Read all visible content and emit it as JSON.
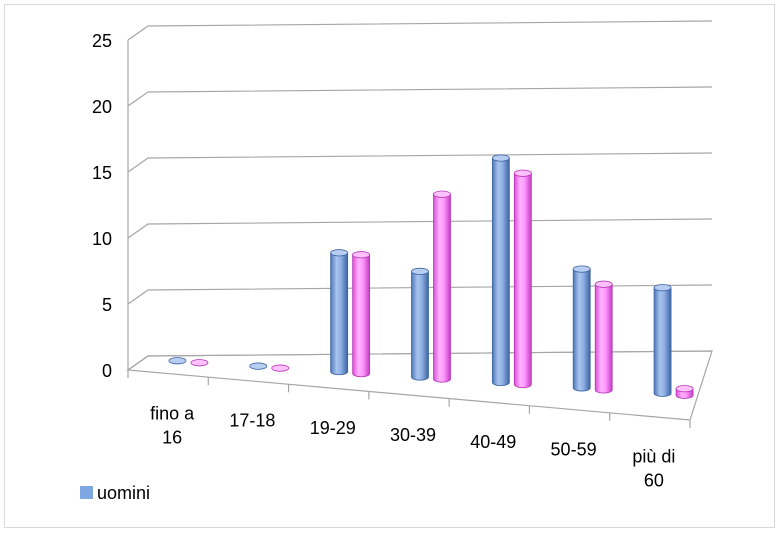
{
  "chart_data": {
    "type": "bar",
    "categories": [
      [
        "fino a",
        "16"
      ],
      [
        "17-18"
      ],
      [
        "19-29"
      ],
      [
        "30-39"
      ],
      [
        "40-49"
      ],
      [
        "50-59"
      ],
      [
        "più di",
        "60"
      ]
    ],
    "series": [
      {
        "name": "uomini",
        "values": [
          0,
          0,
          9,
          8,
          17,
          9,
          8
        ],
        "color": "#7ea6e0"
      },
      {
        "values": [
          0,
          0,
          9,
          14,
          16,
          8,
          0.5
        ],
        "color": "#ff80ff"
      }
    ],
    "ylim": [
      0,
      25
    ],
    "yticks": [
      "0",
      "5",
      "10",
      "15",
      "20",
      "25"
    ],
    "grid": true,
    "legend": "bottom-left",
    "style": "3d-cylinder"
  }
}
